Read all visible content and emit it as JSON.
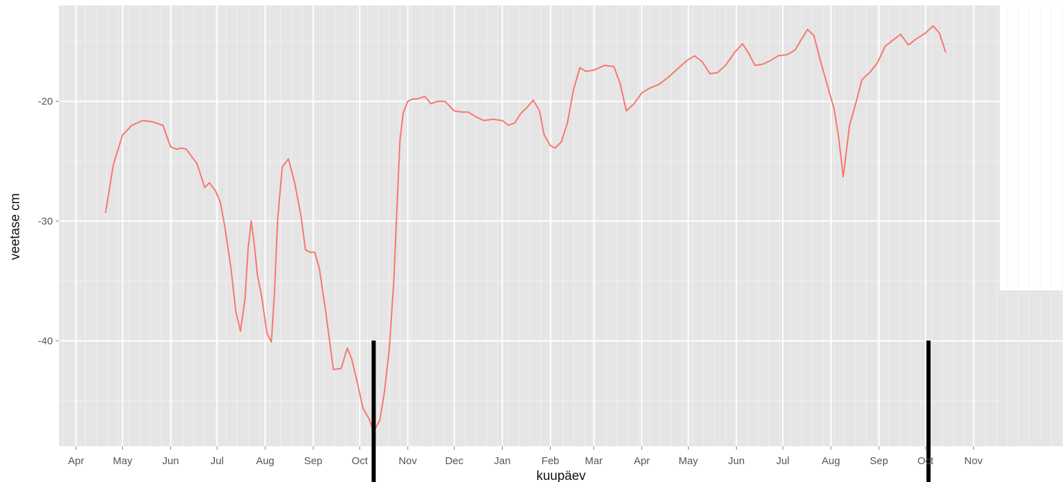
{
  "chart_data": {
    "type": "line",
    "title": "",
    "xlabel": "kuupäev",
    "ylabel": "veetase cm",
    "x_tick_labels": [
      "Apr",
      "May",
      "Jun",
      "Jul",
      "Aug",
      "Sep",
      "Oct",
      "Nov",
      "Dec",
      "Jan",
      "Feb",
      "Mar",
      "Apr",
      "May",
      "Jun",
      "Jul",
      "Aug",
      "Sep",
      "Oct",
      "Nov"
    ],
    "x_tick_dates": [
      "2012-04-01",
      "2012-05-01",
      "2012-06-01",
      "2012-07-01",
      "2012-08-01",
      "2012-09-01",
      "2012-10-01",
      "2012-11-01",
      "2012-12-01",
      "2013-01-01",
      "2013-02-01",
      "2013-03-01",
      "2013-04-01",
      "2013-05-01",
      "2013-06-01",
      "2013-07-01",
      "2013-08-01",
      "2013-09-01",
      "2013-10-01",
      "2013-11-01"
    ],
    "y_ticks": [
      -20,
      -30,
      -40
    ],
    "y_tick_labels": [
      "-20",
      "-30",
      "-40"
    ],
    "xlim": [
      "2012-03-21",
      "2013-11-18"
    ],
    "ylim": [
      -48.8,
      -12.0
    ],
    "grid": true,
    "series": [
      {
        "color": "#F8766D",
        "x": [
          "2012-04-20",
          "2012-04-25",
          "2012-05-01",
          "2012-05-07",
          "2012-05-14",
          "2012-05-20",
          "2012-05-27",
          "2012-06-01",
          "2012-06-05",
          "2012-06-08",
          "2012-06-11",
          "2012-06-18",
          "2012-06-23",
          "2012-06-26",
          "2012-06-30",
          "2012-07-03",
          "2012-07-06",
          "2012-07-10",
          "2012-07-13",
          "2012-07-16",
          "2012-07-19",
          "2012-07-21",
          "2012-07-23",
          "2012-07-25",
          "2012-07-27",
          "2012-07-30",
          "2012-08-02",
          "2012-08-05",
          "2012-08-07",
          "2012-08-09",
          "2012-08-12",
          "2012-08-16",
          "2012-08-20",
          "2012-08-24",
          "2012-08-27",
          "2012-08-30",
          "2012-09-02",
          "2012-09-05",
          "2012-09-09",
          "2012-09-14",
          "2012-09-19",
          "2012-09-23",
          "2012-09-26",
          "2012-09-30",
          "2012-10-03",
          "2012-10-07",
          "2012-10-10",
          "2012-10-14",
          "2012-10-17",
          "2012-10-20",
          "2012-10-23",
          "2012-10-25",
          "2012-10-27",
          "2012-10-29",
          "2012-11-01",
          "2012-11-04",
          "2012-11-07",
          "2012-11-12",
          "2012-11-16",
          "2012-11-20",
          "2012-11-25",
          "2012-12-01",
          "2012-12-06",
          "2012-12-10",
          "2012-12-15",
          "2012-12-20",
          "2012-12-26",
          "2013-01-01",
          "2013-01-05",
          "2013-01-09",
          "2013-01-13",
          "2013-01-17",
          "2013-01-21",
          "2013-01-25",
          "2013-01-28",
          "2013-02-01",
          "2013-02-04",
          "2013-02-08",
          "2013-02-12",
          "2013-02-16",
          "2013-02-20",
          "2013-02-24",
          "2013-03-01",
          "2013-03-08",
          "2013-03-14",
          "2013-03-18",
          "2013-03-22",
          "2013-03-27",
          "2013-04-01",
          "2013-04-06",
          "2013-04-12",
          "2013-04-18",
          "2013-04-24",
          "2013-04-30",
          "2013-05-05",
          "2013-05-10",
          "2013-05-15",
          "2013-05-20",
          "2013-05-25",
          "2013-05-31",
          "2013-06-05",
          "2013-06-09",
          "2013-06-13",
          "2013-06-18",
          "2013-06-23",
          "2013-06-28",
          "2013-07-04",
          "2013-07-09",
          "2013-07-14",
          "2013-07-17",
          "2013-07-21",
          "2013-07-25",
          "2013-07-30",
          "2013-08-03",
          "2013-08-06",
          "2013-08-09",
          "2013-08-13",
          "2013-08-17",
          "2013-08-21",
          "2013-08-26",
          "2013-08-31",
          "2013-09-05",
          "2013-09-10",
          "2013-09-15",
          "2013-09-20",
          "2013-09-25",
          "2013-10-01",
          "2013-10-06",
          "2013-10-10",
          "2013-10-14"
        ],
        "y": [
          -29.3,
          -25.3,
          -22.8,
          -22.0,
          -21.6,
          -21.7,
          -22.0,
          -23.8,
          -24.0,
          -23.9,
          -24.0,
          -25.2,
          -27.2,
          -26.8,
          -27.5,
          -28.4,
          -30.5,
          -34.0,
          -37.5,
          -39.2,
          -36.5,
          -32.2,
          -30.0,
          -32.0,
          -34.5,
          -36.5,
          -39.3,
          -40.1,
          -36.0,
          -30.0,
          -25.5,
          -24.8,
          -26.8,
          -29.5,
          -32.4,
          -32.6,
          -32.6,
          -34.0,
          -37.5,
          -42.4,
          -42.3,
          -40.6,
          -41.6,
          -43.8,
          -45.6,
          -46.5,
          -47.6,
          -46.6,
          -44.2,
          -40.8,
          -35.0,
          -29.0,
          -23.2,
          -21.0,
          -20.0,
          -19.8,
          -19.8,
          -19.6,
          -20.2,
          -20.0,
          -20.0,
          -20.8,
          -20.9,
          -20.9,
          -21.3,
          -21.6,
          -21.5,
          -21.6,
          -22.0,
          -21.8,
          -21.0,
          -20.5,
          -19.9,
          -20.8,
          -22.8,
          -23.7,
          -23.9,
          -23.4,
          -21.8,
          -19.0,
          -17.2,
          -17.5,
          -17.4,
          -17.0,
          -17.1,
          -18.5,
          -20.8,
          -20.2,
          -19.3,
          -18.9,
          -18.6,
          -18.0,
          -17.3,
          -16.6,
          -16.2,
          -16.7,
          -17.7,
          -17.6,
          -17.0,
          -15.9,
          -15.2,
          -16.0,
          -17.0,
          -16.9,
          -16.6,
          -16.2,
          -16.1,
          -15.7,
          -14.6,
          -14.0,
          -14.5,
          -16.5,
          -18.8,
          -20.6,
          -23.0,
          -26.3,
          -22.0,
          -20.2,
          -18.2,
          -17.6,
          -16.8,
          -15.4,
          -14.9,
          -14.4,
          -15.3,
          -14.8,
          -14.3,
          -13.7,
          -14.3,
          -15.9
        ]
      }
    ],
    "vertical_markers": [
      "2012-10-10",
      "2013-10-03"
    ]
  }
}
